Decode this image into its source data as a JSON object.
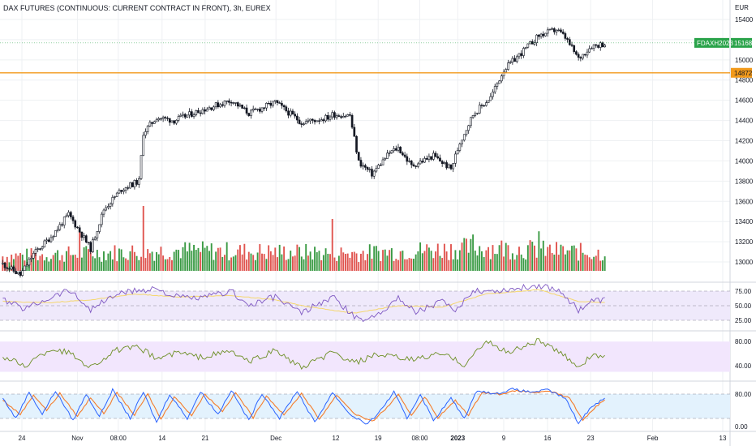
{
  "header": {
    "title": "DAX FUTURES (CONTINUOUS: CURRENT CONTRACT IN FRONT), 3h, EUREX"
  },
  "chart_data": {
    "type": "candlestick",
    "currency_label": "EUR",
    "price_axis": {
      "ylim": [
        12880,
        15480
      ],
      "ticks": [
        13000,
        13200,
        13400,
        13600,
        13800,
        14000,
        14200,
        14400,
        14600,
        14800,
        15000,
        15200,
        15400
      ]
    },
    "price_waypoints": [
      [
        0,
        12980
      ],
      [
        8,
        12870
      ],
      [
        14,
        13080
      ],
      [
        22,
        13250
      ],
      [
        30,
        13470
      ],
      [
        36,
        13270
      ],
      [
        40,
        13130
      ],
      [
        46,
        13520
      ],
      [
        54,
        13720
      ],
      [
        62,
        13800
      ],
      [
        64,
        14280
      ],
      [
        70,
        14430
      ],
      [
        78,
        14400
      ],
      [
        90,
        14500
      ],
      [
        104,
        14600
      ],
      [
        112,
        14470
      ],
      [
        124,
        14580
      ],
      [
        136,
        14380
      ],
      [
        148,
        14430
      ],
      [
        150,
        14460
      ],
      [
        158,
        14450
      ],
      [
        162,
        13990
      ],
      [
        168,
        13870
      ],
      [
        176,
        14080
      ],
      [
        180,
        14130
      ],
      [
        186,
        13950
      ],
      [
        196,
        14050
      ],
      [
        204,
        13920
      ],
      [
        208,
        14180
      ],
      [
        214,
        14460
      ],
      [
        222,
        14630
      ],
      [
        228,
        14900
      ],
      [
        236,
        15070
      ],
      [
        244,
        15240
      ],
      [
        252,
        15300
      ],
      [
        256,
        15220
      ],
      [
        262,
        15010
      ],
      [
        268,
        15140
      ],
      [
        274,
        15160
      ]
    ],
    "volume_waypoints": [
      [
        0,
        0.25
      ],
      [
        80,
        0.35
      ],
      [
        160,
        0.3
      ],
      [
        220,
        0.4
      ],
      [
        274,
        0.3
      ]
    ],
    "volume_spikes": [
      [
        35,
        0.6
      ],
      [
        64,
        1.0
      ],
      [
        150,
        0.8
      ],
      [
        214,
        0.56
      ],
      [
        244,
        0.61
      ]
    ],
    "last_price_label": "FDAXH2023",
    "last_price": 15168,
    "horizontal_line": 14872,
    "x_axis_labels": [
      {
        "label": "24",
        "pos": 0.03
      },
      {
        "label": "Nov",
        "pos": 0.106
      },
      {
        "label": "08:00",
        "pos": 0.162
      },
      {
        "label": "14",
        "pos": 0.222
      },
      {
        "label": "21",
        "pos": 0.281
      },
      {
        "label": "Dec",
        "pos": 0.378
      },
      {
        "label": "12",
        "pos": 0.46
      },
      {
        "label": "19",
        "pos": 0.518
      },
      {
        "label": "08:00",
        "pos": 0.575
      },
      {
        "label": "2023",
        "pos": 0.627
      },
      {
        "label": "9",
        "pos": 0.69
      },
      {
        "label": "16",
        "pos": 0.75
      },
      {
        "label": "23",
        "pos": 0.809
      },
      {
        "label": "Feb",
        "pos": 0.894
      },
      {
        "label": "13",
        "pos": 0.99
      }
    ],
    "rsi": {
      "ticks": [
        75,
        50,
        25
      ],
      "band": [
        30,
        70
      ],
      "ylim": [
        20,
        80
      ],
      "waypoints": [
        [
          0,
          58
        ],
        [
          10,
          46
        ],
        [
          22,
          62
        ],
        [
          30,
          72
        ],
        [
          40,
          45
        ],
        [
          52,
          66
        ],
        [
          60,
          70
        ],
        [
          70,
          74
        ],
        [
          78,
          62
        ],
        [
          90,
          60
        ],
        [
          104,
          70
        ],
        [
          112,
          50
        ],
        [
          124,
          62
        ],
        [
          136,
          40
        ],
        [
          150,
          62
        ],
        [
          162,
          30
        ],
        [
          168,
          34
        ],
        [
          180,
          60
        ],
        [
          188,
          42
        ],
        [
          200,
          56
        ],
        [
          206,
          40
        ],
        [
          214,
          72
        ],
        [
          222,
          70
        ],
        [
          236,
          74
        ],
        [
          244,
          78
        ],
        [
          254,
          70
        ],
        [
          262,
          44
        ],
        [
          268,
          56
        ],
        [
          274,
          58
        ]
      ],
      "ma_waypoints": [
        [
          0,
          56
        ],
        [
          20,
          54
        ],
        [
          40,
          58
        ],
        [
          60,
          66
        ],
        [
          80,
          62
        ],
        [
          104,
          64
        ],
        [
          124,
          58
        ],
        [
          140,
          48
        ],
        [
          160,
          40
        ],
        [
          180,
          50
        ],
        [
          200,
          48
        ],
        [
          220,
          66
        ],
        [
          244,
          72
        ],
        [
          262,
          56
        ],
        [
          274,
          54
        ]
      ]
    },
    "osc2": {
      "ticks": [
        80,
        40
      ],
      "ylim": [
        20,
        95
      ],
      "waypoints": [
        [
          0,
          55
        ],
        [
          10,
          40
        ],
        [
          22,
          68
        ],
        [
          30,
          62
        ],
        [
          40,
          38
        ],
        [
          52,
          66
        ],
        [
          62,
          70
        ],
        [
          70,
          52
        ],
        [
          80,
          62
        ],
        [
          90,
          54
        ],
        [
          104,
          64
        ],
        [
          112,
          46
        ],
        [
          124,
          66
        ],
        [
          136,
          36
        ],
        [
          150,
          62
        ],
        [
          160,
          44
        ],
        [
          170,
          58
        ],
        [
          186,
          50
        ],
        [
          200,
          60
        ],
        [
          210,
          42
        ],
        [
          220,
          80
        ],
        [
          230,
          62
        ],
        [
          244,
          82
        ],
        [
          254,
          60
        ],
        [
          262,
          40
        ],
        [
          268,
          56
        ],
        [
          274,
          57
        ]
      ]
    },
    "stoch": {
      "ticks": [
        80,
        0
      ],
      "ylim": [
        -8,
        108
      ],
      "band": [
        20,
        80
      ],
      "k_waypoints": [
        [
          0,
          70
        ],
        [
          6,
          20
        ],
        [
          12,
          85
        ],
        [
          18,
          30
        ],
        [
          24,
          88
        ],
        [
          32,
          15
        ],
        [
          38,
          80
        ],
        [
          44,
          25
        ],
        [
          50,
          90
        ],
        [
          58,
          20
        ],
        [
          64,
          85
        ],
        [
          70,
          10
        ],
        [
          76,
          80
        ],
        [
          84,
          20
        ],
        [
          90,
          86
        ],
        [
          98,
          30
        ],
        [
          104,
          90
        ],
        [
          112,
          15
        ],
        [
          118,
          82
        ],
        [
          126,
          20
        ],
        [
          134,
          88
        ],
        [
          142,
          10
        ],
        [
          150,
          84
        ],
        [
          158,
          30
        ],
        [
          166,
          5
        ],
        [
          172,
          40
        ],
        [
          178,
          85
        ],
        [
          184,
          20
        ],
        [
          190,
          80
        ],
        [
          196,
          15
        ],
        [
          204,
          70
        ],
        [
          210,
          20
        ],
        [
          216,
          90
        ],
        [
          224,
          80
        ],
        [
          232,
          92
        ],
        [
          240,
          85
        ],
        [
          248,
          90
        ],
        [
          256,
          70
        ],
        [
          262,
          8
        ],
        [
          268,
          50
        ],
        [
          274,
          70
        ]
      ],
      "d_waypoints": [
        [
          0,
          65
        ],
        [
          8,
          30
        ],
        [
          14,
          78
        ],
        [
          20,
          40
        ],
        [
          26,
          82
        ],
        [
          34,
          25
        ],
        [
          40,
          72
        ],
        [
          46,
          32
        ],
        [
          52,
          84
        ],
        [
          60,
          28
        ],
        [
          66,
          80
        ],
        [
          72,
          18
        ],
        [
          78,
          74
        ],
        [
          86,
          28
        ],
        [
          92,
          80
        ],
        [
          100,
          38
        ],
        [
          106,
          84
        ],
        [
          114,
          22
        ],
        [
          120,
          76
        ],
        [
          128,
          28
        ],
        [
          136,
          82
        ],
        [
          144,
          18
        ],
        [
          152,
          78
        ],
        [
          160,
          32
        ],
        [
          168,
          12
        ],
        [
          174,
          42
        ],
        [
          180,
          78
        ],
        [
          186,
          28
        ],
        [
          192,
          74
        ],
        [
          198,
          22
        ],
        [
          206,
          64
        ],
        [
          212,
          28
        ],
        [
          218,
          84
        ],
        [
          226,
          80
        ],
        [
          234,
          88
        ],
        [
          242,
          84
        ],
        [
          250,
          86
        ],
        [
          258,
          70
        ],
        [
          264,
          16
        ],
        [
          270,
          50
        ],
        [
          274,
          66
        ]
      ]
    },
    "colors": {
      "up": "#26a69a",
      "up_vol": "#3a9a44",
      "down_vol": "#e0544f",
      "candle": "#131722",
      "hline": "#f29a1b",
      "last_price_bg": "#2aa34a",
      "rsi_line": "#7e57c2",
      "rsi_ma": "#f5d76e",
      "rsi_band": "#efe9fb",
      "osc_line": "#6b8e23",
      "osc_band": "#f2e6fd",
      "stoch_k": "#2962ff",
      "stoch_d": "#f57c2a",
      "stoch_band": "#e3f2fd"
    }
  }
}
